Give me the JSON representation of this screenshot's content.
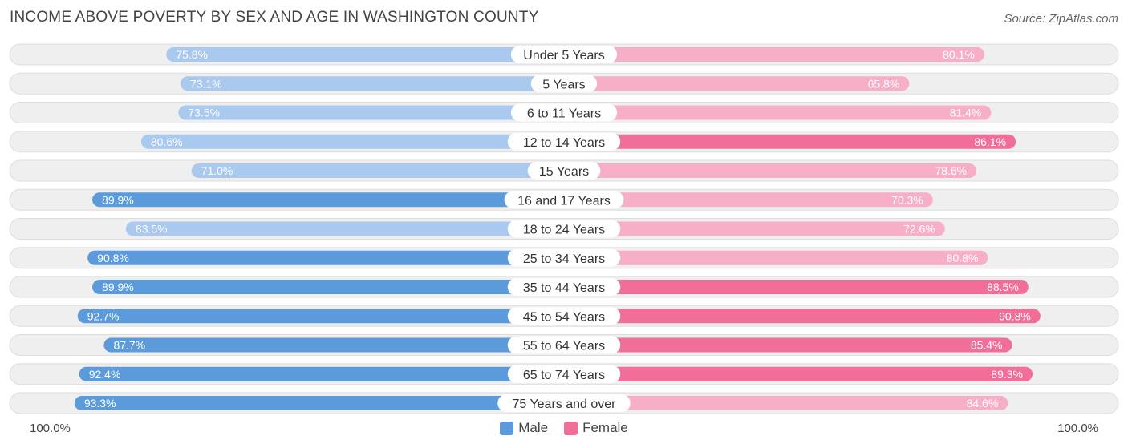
{
  "header": {
    "title": "INCOME ABOVE POVERTY BY SEX AND AGE IN WASHINGTON COUNTY",
    "source": "Source: ZipAtlas.com"
  },
  "axis": {
    "left_label": "100.0%",
    "right_label": "100.0%"
  },
  "legend": {
    "male_label": "Male",
    "female_label": "Female"
  },
  "colors": {
    "male_dark": "#5b9bdb",
    "male_light": "#a9c9ee",
    "female_dark": "#f06e98",
    "female_light": "#f7afc8",
    "row_bg": "#efefef",
    "row_border": "#dddddd"
  },
  "chart_data": {
    "type": "bar",
    "orientation": "horizontal-diverging",
    "title": "INCOME ABOVE POVERTY BY SEX AND AGE IN WASHINGTON COUNTY",
    "xlim": [
      0,
      100
    ],
    "unit": "%",
    "categories": [
      "Under 5 Years",
      "5 Years",
      "6 to 11 Years",
      "12 to 14 Years",
      "15 Years",
      "16 and 17 Years",
      "18 to 24 Years",
      "25 to 34 Years",
      "35 to 44 Years",
      "45 to 54 Years",
      "55 to 64 Years",
      "65 to 74 Years",
      "75 Years and over"
    ],
    "series": [
      {
        "name": "Male",
        "values": [
          75.8,
          73.1,
          73.5,
          80.6,
          71.0,
          89.9,
          83.5,
          90.8,
          89.9,
          92.7,
          87.7,
          92.4,
          93.3
        ]
      },
      {
        "name": "Female",
        "values": [
          80.1,
          65.8,
          81.4,
          86.1,
          78.6,
          70.3,
          72.6,
          80.8,
          88.5,
          90.8,
          85.4,
          89.3,
          84.6
        ]
      }
    ],
    "labels": {
      "Male": [
        "75.8%",
        "73.1%",
        "73.5%",
        "80.6%",
        "71.0%",
        "89.9%",
        "83.5%",
        "90.8%",
        "89.9%",
        "92.7%",
        "87.7%",
        "92.4%",
        "93.3%"
      ],
      "Female": [
        "80.1%",
        "65.8%",
        "81.4%",
        "86.1%",
        "78.6%",
        "70.3%",
        "72.6%",
        "80.8%",
        "88.5%",
        "90.8%",
        "85.4%",
        "89.3%",
        "84.6%"
      ]
    }
  }
}
